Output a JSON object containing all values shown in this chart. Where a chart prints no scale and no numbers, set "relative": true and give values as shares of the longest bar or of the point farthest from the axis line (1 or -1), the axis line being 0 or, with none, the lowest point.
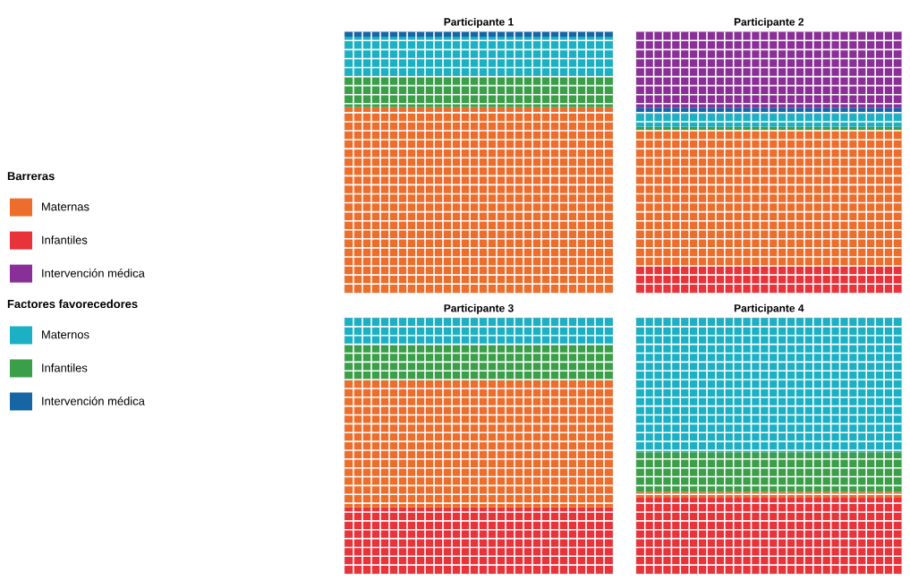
{
  "chart_data": [
    {
      "type": "bar",
      "title": "Participante 1",
      "stacked": true,
      "relative": true,
      "grid": true,
      "categories": [
        null
      ],
      "series": [
        {
          "color": "#ed6e2c",
          "values": [
            0.711
          ]
        },
        {
          "color": "#3a9f48",
          "values": [
            0.122
          ]
        },
        {
          "color": "#1cb0c4",
          "values": [
            0.147
          ]
        },
        {
          "color": "#1666a6",
          "values": [
            0.02
          ]
        }
      ]
    },
    {
      "type": "bar",
      "title": "Participante 2",
      "stacked": true,
      "relative": true,
      "grid": true,
      "legend": "left",
      "legend_title": "Barreras",
      "annotations": [
        "Factores favorecedores"
      ],
      "categories": [
        null
      ],
      "series": [
        {
          "name": "Infantiles",
          "color": "#e8333a",
          "values": [
            0.103
          ]
        },
        {
          "name": "Maternas",
          "color": "#ed6e2c",
          "values": [
            0.52
          ]
        },
        {
          "name": "Infantiles",
          "color": "#3a9f48",
          "values": [
            0.013
          ]
        },
        {
          "name": "Maternos",
          "color": "#1cb0c4",
          "values": [
            0.049
          ]
        },
        {
          "name": "Intervención médica",
          "color": "#1666a6",
          "values": [
            0.024
          ]
        },
        {
          "name": "Intervención médica",
          "color": "#8b2f98",
          "values": [
            0.291
          ]
        }
      ]
    },
    {
      "type": "bar",
      "title": "Participante 3",
      "stacked": true,
      "relative": true,
      "grid": true,
      "categories": [
        null
      ],
      "series": [
        {
          "color": "#e8333a",
          "values": [
            0.261
          ]
        },
        {
          "color": "#ed6e2c",
          "values": [
            0.495
          ]
        },
        {
          "color": "#3a9f48",
          "values": [
            0.136
          ]
        },
        {
          "color": "#1cb0c4",
          "values": [
            0.108
          ]
        },
        {
          "color": "#1666a6",
          "values": [
            0
          ]
        },
        {
          "color": "#8b2f98",
          "values": [
            0
          ]
        }
      ]
    },
    {
      "type": "bar",
      "title": "Participante 4",
      "stacked": true,
      "relative": true,
      "grid": true,
      "categories": [
        null
      ],
      "series": [
        {
          "color": "#e8333a",
          "values": [
            0.297
          ]
        },
        {
          "color": "#ed6e2c",
          "values": [
            0.023
          ]
        },
        {
          "color": "#3a9f48",
          "values": [
            0.155
          ]
        },
        {
          "color": "#1cb0c4",
          "values": [
            0.525
          ]
        },
        {
          "color": "#1666a6",
          "values": [
            0
          ]
        },
        {
          "color": "#8b2f98",
          "values": [
            0
          ]
        }
      ]
    }
  ]
}
